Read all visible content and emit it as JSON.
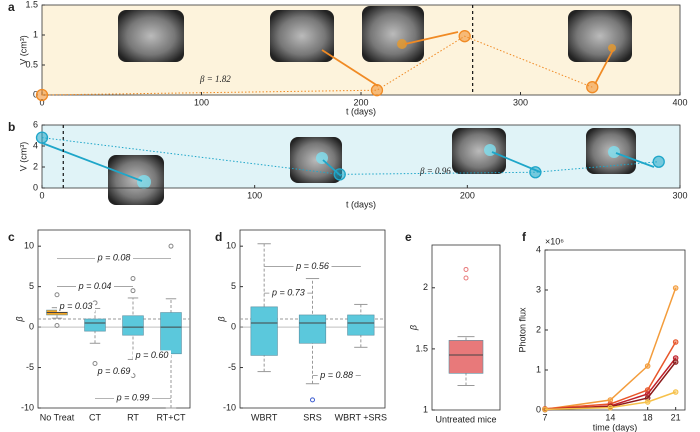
{
  "chart_data": [
    {
      "type": "scatter",
      "panel": "a",
      "ylabel": "V (cm³)",
      "xlabel": "t (days)",
      "annotation": "β = 1.82",
      "x": [
        0,
        210,
        265,
        345
      ],
      "values": [
        0,
        0.08,
        0.98,
        0.13
      ],
      "color": "#f08a24",
      "background": "#fdf3dc",
      "vline": 270,
      "xlim": [
        0,
        400
      ],
      "xticks": [
        0,
        100,
        200,
        300,
        400
      ],
      "ylim": [
        0,
        1.5
      ],
      "yticks": [
        0,
        0.5,
        1,
        1.5
      ]
    },
    {
      "type": "scatter",
      "panel": "b",
      "ylabel": "V (cm³)",
      "xlabel": "t (days)",
      "annotation": "β = 0.96",
      "x": [
        0,
        140,
        232,
        290
      ],
      "values": [
        4.8,
        1.3,
        1.5,
        2.5
      ],
      "color": "#1ea6c9",
      "background": "#e0f3f7",
      "vline": 10,
      "xlim": [
        0,
        300
      ],
      "xticks": [
        0,
        100,
        200,
        300
      ],
      "ylim": [
        0,
        6
      ],
      "yticks": [
        0,
        2,
        4,
        6
      ]
    },
    {
      "type": "box",
      "panel": "c",
      "ylabel": "β",
      "categories": [
        "No Treat",
        "CT",
        "RT",
        "RT+CT"
      ],
      "colors": [
        "#f5a623",
        "#5bc8dc",
        "#5bc8dc",
        "#5bc8dc"
      ],
      "outlier_color": "#888",
      "ref_line": 1,
      "boxes": [
        {
          "low": 1.1,
          "q1": 1.5,
          "median": 1.8,
          "q3": 2.1,
          "high": 2.4,
          "outliers": [
            4,
            0.2
          ]
        },
        {
          "low": -2,
          "q1": -0.5,
          "median": 0.5,
          "q3": 1,
          "high": 2.3,
          "outliers": [
            -4.5,
            3
          ]
        },
        {
          "low": -4,
          "q1": -1,
          "median": 0,
          "q3": 1.4,
          "high": 3.6,
          "outliers": [
            4.5,
            6,
            -6
          ]
        },
        {
          "low": -10,
          "q1": -3.3,
          "median": 0,
          "q3": 1.8,
          "high": 3.5,
          "outliers": [
            10
          ]
        }
      ],
      "pvalues": [
        "p = 0.08",
        "p = 0.04",
        "p = 0.03",
        "p = 0.69",
        "p = 0.60",
        "p = 0.99"
      ],
      "ylim": [
        -10,
        12
      ],
      "yticks": [
        -10,
        -5,
        0,
        5,
        10
      ]
    },
    {
      "type": "box",
      "panel": "d",
      "ylabel": "β",
      "categories": [
        "WBRT",
        "SRS",
        "WBRT +SRS"
      ],
      "colors": [
        "#5bc8dc",
        "#5bc8dc",
        "#5bc8dc"
      ],
      "outlier_color": "#3b5bd0",
      "ref_line": 1,
      "boxes": [
        {
          "low": -5.5,
          "q1": -3.5,
          "median": 0.5,
          "q3": 2.5,
          "high": 10.3,
          "outliers": []
        },
        {
          "low": -7,
          "q1": -2,
          "median": 0.5,
          "q3": 1.5,
          "high": 6,
          "outliers": [
            -9
          ]
        },
        {
          "low": -2.5,
          "q1": -1,
          "median": 0.5,
          "q3": 1.5,
          "high": 2.8,
          "outliers": []
        }
      ],
      "pvalues": [
        "p = 0.56",
        "p = 0.73",
        "p = 0.88"
      ],
      "ylim": [
        -10,
        12
      ],
      "yticks": [
        -10,
        -5,
        0,
        5,
        10
      ]
    },
    {
      "type": "box",
      "panel": "e",
      "ylabel": "β",
      "categories": [
        "Untreated mice"
      ],
      "colors": [
        "#e8797a"
      ],
      "outlier_color": "#e8797a",
      "boxes": [
        {
          "low": 1.2,
          "q1": 1.3,
          "median": 1.45,
          "q3": 1.57,
          "high": 1.6,
          "outliers": [
            2.15,
            2.08
          ]
        }
      ],
      "ylim": [
        1,
        2.35
      ],
      "yticks": [
        1,
        1.5,
        2
      ]
    },
    {
      "type": "line",
      "panel": "f",
      "ylabel": "Photon flux",
      "xlabel": "time (days)",
      "y_exponent": "×10⁶",
      "x": [
        7,
        14,
        18,
        21
      ],
      "series": [
        {
          "color": "#f39c3b",
          "values": [
            20000,
            250000,
            1100000,
            3050000
          ]
        },
        {
          "color": "#e8562a",
          "values": [
            30000,
            150000,
            500000,
            1700000
          ]
        },
        {
          "color": "#c0202a",
          "values": [
            20000,
            100000,
            400000,
            1300000
          ]
        },
        {
          "color": "#8b1a1a",
          "values": [
            10000,
            80000,
            300000,
            1200000
          ]
        },
        {
          "color": "#f6c14a",
          "values": [
            15000,
            60000,
            200000,
            450000
          ]
        }
      ],
      "xlim": [
        7,
        22
      ],
      "xticks": [
        7,
        14,
        18,
        21
      ],
      "ylim": [
        0,
        4000000
      ],
      "yticks": [
        {
          "value": 0,
          "label": "0"
        },
        {
          "value": 1000000,
          "label": "1"
        },
        {
          "value": 2000000,
          "label": "2"
        },
        {
          "value": 3000000,
          "label": "3"
        },
        {
          "value": 4000000,
          "label": "4"
        }
      ]
    }
  ]
}
